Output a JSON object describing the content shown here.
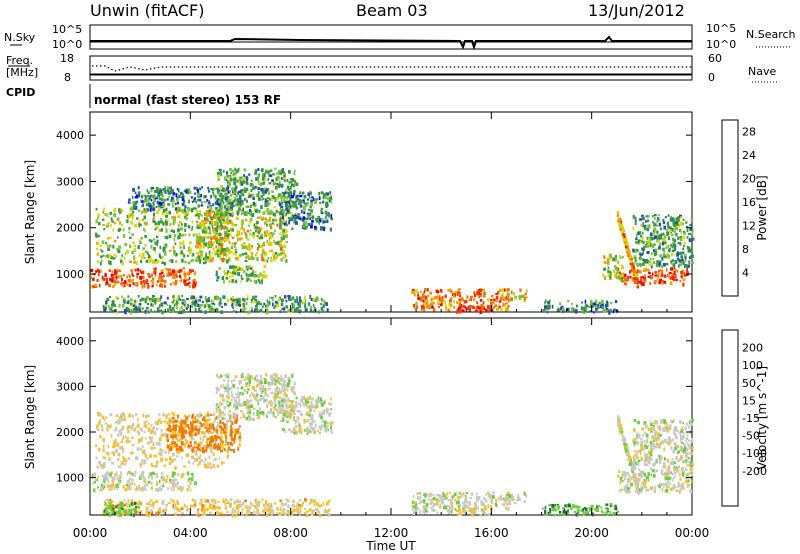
{
  "header": {
    "station": "Unwin (fitACF)",
    "beam": "Beam 03",
    "date": "13/Jun/2012"
  },
  "noise_panel": {
    "left_label": "N.Sky",
    "right_label": "N.Search",
    "left_ticks": [
      "10^5",
      "10^0"
    ],
    "right_ticks": [
      "10^5",
      "10^0"
    ]
  },
  "freq_panel": {
    "left_label_line1": "Freq.",
    "left_label_line2": "[MHz]",
    "right_label": "Nave",
    "left_ticks": [
      "18",
      "8"
    ],
    "right_ticks": [
      "60",
      "0"
    ],
    "freq_mhz": 11.1,
    "nave": 26
  },
  "cpid": {
    "label": "CPID",
    "mode_text": "normal (fast stereo) 153 RF"
  },
  "colors": {
    "power_scale": [
      "#0000ff",
      "#244da8",
      "#2e8b57",
      "#3a9a3a",
      "#78c43c",
      "#d8d800",
      "#f0a000",
      "#f07000",
      "#ee3300",
      "#ee0000"
    ],
    "velocity_scale": [
      "#1818b0",
      "#225aa0",
      "#1e6a3a",
      "#6acc3a",
      "#c8c8c8",
      "#c8c8c8",
      "#f0c23a",
      "#f07800",
      "#e04000",
      "#ee0000"
    ]
  },
  "chart_data": [
    {
      "type": "heatmap",
      "name": "power",
      "xlabel": "Time UT",
      "ylabel": "Slant Range [km]",
      "x_ticks": [
        "00:00",
        "04:00",
        "08:00",
        "12:00",
        "16:00",
        "20:00",
        "00:00"
      ],
      "xlim_hours": [
        0,
        24
      ],
      "ylim": [
        180,
        4500
      ],
      "y_ticks": [
        1000,
        2000,
        3000,
        4000
      ],
      "colorbar_label": "Power [dB]",
      "colorbar_range": [
        0,
        30
      ],
      "colorbar_ticks": [
        4,
        8,
        12,
        16,
        20,
        24,
        28
      ],
      "regions": [
        {
          "t0": 0.0,
          "t1": 4.2,
          "r0": 750,
          "r1": 1150,
          "value": 24
        },
        {
          "t0": 0.2,
          "t1": 5.5,
          "r0": 1250,
          "r1": 2450,
          "value": 13
        },
        {
          "t0": 1.5,
          "t1": 5.5,
          "r0": 2400,
          "r1": 2900,
          "value": 8
        },
        {
          "t0": 4.2,
          "t1": 7.8,
          "r0": 1300,
          "r1": 2400,
          "value": 16
        },
        {
          "t0": 5.0,
          "t1": 8.2,
          "r0": 2300,
          "r1": 3300,
          "value": 10
        },
        {
          "t0": 7.5,
          "t1": 9.6,
          "r0": 2000,
          "r1": 2800,
          "value": 8
        },
        {
          "t0": 5.0,
          "t1": 7.0,
          "r0": 850,
          "r1": 1200,
          "value": 12
        },
        {
          "t0": 0.5,
          "t1": 9.5,
          "r0": 200,
          "r1": 550,
          "value": 10
        },
        {
          "t0": 12.8,
          "t1": 16.7,
          "r0": 250,
          "r1": 700,
          "value": 22
        },
        {
          "t0": 14.5,
          "t1": 16.0,
          "r0": 200,
          "r1": 350,
          "value": 28
        },
        {
          "t0": 16.6,
          "t1": 17.4,
          "r0": 450,
          "r1": 700,
          "value": 18
        },
        {
          "t0": 18.0,
          "t1": 21.0,
          "r0": 200,
          "r1": 450,
          "value": 8
        },
        {
          "t0": 21.0,
          "t1": 23.8,
          "r0": 800,
          "r1": 1150,
          "value": 24
        },
        {
          "t0": 20.4,
          "t1": 21.2,
          "r0": 900,
          "r1": 1450,
          "value": 16
        },
        {
          "t0": 21.6,
          "t1": 24.0,
          "r0": 1200,
          "r1": 2300,
          "value": 10
        }
      ],
      "trails": [
        {
          "t0": 21.0,
          "t1": 21.8,
          "r0": 2300,
          "r1": 800,
          "value": 20
        }
      ]
    },
    {
      "type": "heatmap",
      "name": "velocity",
      "xlabel": "Time UT",
      "ylabel": "Slant Range [km]",
      "x_ticks": [
        "00:00",
        "04:00",
        "08:00",
        "12:00",
        "16:00",
        "20:00",
        "00:00"
      ],
      "xlim_hours": [
        0,
        24
      ],
      "ylim": [
        180,
        4500
      ],
      "y_ticks": [
        1000,
        2000,
        3000,
        4000
      ],
      "colorbar_label": "Velocity [m s^-1]",
      "colorbar_ticks": [
        "200",
        "100",
        "50",
        "15",
        "-15",
        "-50",
        "-100",
        "-200"
      ],
      "regions": [
        {
          "t0": 0.0,
          "t1": 4.2,
          "r0": 750,
          "r1": 1150,
          "value": 0
        },
        {
          "t0": 0.2,
          "t1": 5.5,
          "r0": 1250,
          "r1": 2450,
          "value": -20
        },
        {
          "t0": 3.0,
          "t1": 6.0,
          "r0": 1600,
          "r1": 2400,
          "value": -60
        },
        {
          "t0": 5.0,
          "t1": 8.2,
          "r0": 2300,
          "r1": 3300,
          "value": 0
        },
        {
          "t0": 7.5,
          "t1": 9.6,
          "r0": 2000,
          "r1": 2800,
          "value": 0
        },
        {
          "t0": 0.5,
          "t1": 9.5,
          "r0": 200,
          "r1": 550,
          "value": -30
        },
        {
          "t0": 0.5,
          "t1": 2.0,
          "r0": 200,
          "r1": 500,
          "value": 40
        },
        {
          "t0": 12.8,
          "t1": 16.7,
          "r0": 250,
          "r1": 700,
          "value": 0
        },
        {
          "t0": 14.5,
          "t1": 16.0,
          "r0": 200,
          "r1": 350,
          "value": -25
        },
        {
          "t0": 16.6,
          "t1": 17.4,
          "r0": 450,
          "r1": 700,
          "value": 0
        },
        {
          "t0": 18.0,
          "t1": 21.0,
          "r0": 200,
          "r1": 450,
          "value": 40
        },
        {
          "t0": 21.0,
          "t1": 24.0,
          "r0": 700,
          "r1": 1200,
          "value": 0
        },
        {
          "t0": 21.6,
          "t1": 24.0,
          "r0": 1200,
          "r1": 2300,
          "value": 0
        }
      ],
      "trails": [
        {
          "t0": 21.0,
          "t1": 21.8,
          "r0": 2300,
          "r1": 800,
          "value": 0
        }
      ]
    }
  ]
}
